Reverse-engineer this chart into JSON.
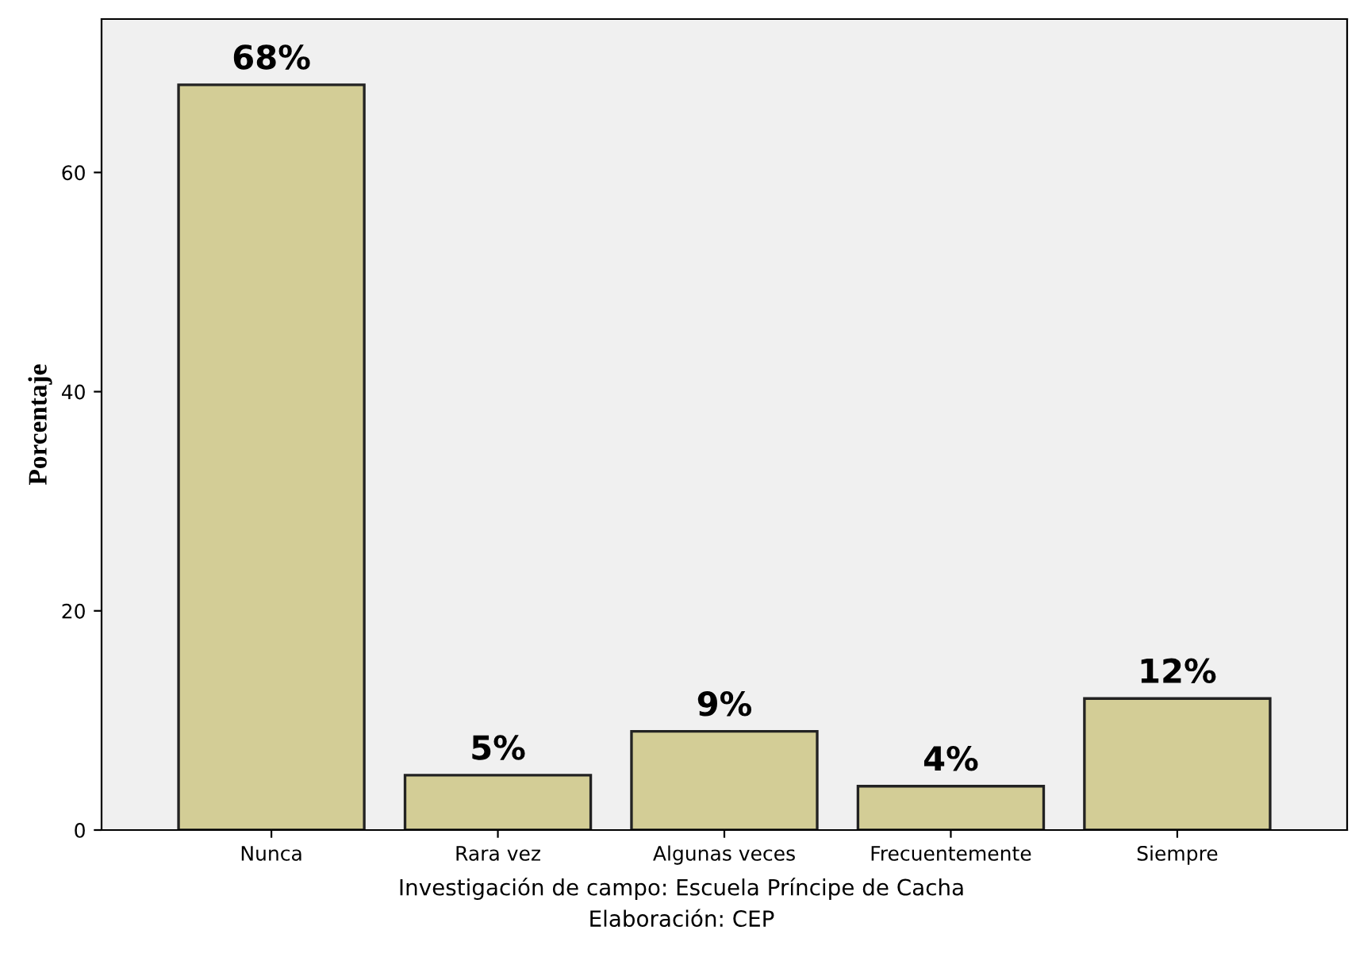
{
  "chart_data": {
    "type": "bar",
    "ylabel": "Porcentaje",
    "categories": [
      "Nunca",
      "Rara vez",
      "Algunas veces",
      "Frecuentemente",
      "Siempre"
    ],
    "values": [
      68,
      5,
      9,
      4,
      12
    ],
    "value_labels": [
      "68%",
      "5%",
      "9%",
      "4%",
      "12%"
    ],
    "color": "#d3cd96",
    "ylim": [
      0,
      74
    ],
    "yticks": [
      0,
      20,
      40,
      60
    ],
    "grid": false,
    "annotations": [
      "Investigación de campo: Escuela Príncipe de Cacha",
      "Elaboración: CEP"
    ]
  }
}
